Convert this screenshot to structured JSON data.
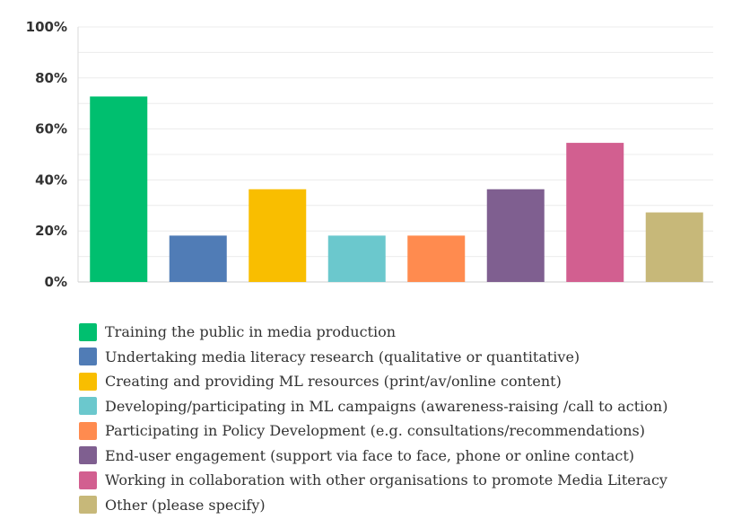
{
  "chart_data": {
    "type": "bar",
    "title": "",
    "xlabel": "",
    "ylabel": "",
    "ylim": [
      0,
      100
    ],
    "y_ticks": [
      "0%",
      "20%",
      "40%",
      "60%",
      "80%",
      "100%"
    ],
    "y_tick_values": [
      0,
      20,
      40,
      60,
      80,
      100
    ],
    "grid": true,
    "legend_position": "bottom",
    "categories": [
      "Training the public in media production",
      "Undertaking media literacy research (qualitative or quantitative)",
      "Creating and providing ML resources (print/av/online content)",
      "Developing/participating in ML campaigns (awareness-raising /call to action)",
      "Participating in Policy Development (e.g. consultations/recommendations)",
      "End-user engagement (support via face to face, phone or online contact)",
      "Working in collaboration with other organisations to promote Media Literacy",
      "Other (please specify)"
    ],
    "values": [
      72.73,
      18.18,
      36.36,
      18.18,
      18.18,
      36.36,
      54.55,
      27.27
    ],
    "colors": [
      "#00BF6F",
      "#507CB6",
      "#F9BE00",
      "#6BC8CD",
      "#FF8B4F",
      "#7F5F90",
      "#D25F90",
      "#C7B879"
    ]
  }
}
